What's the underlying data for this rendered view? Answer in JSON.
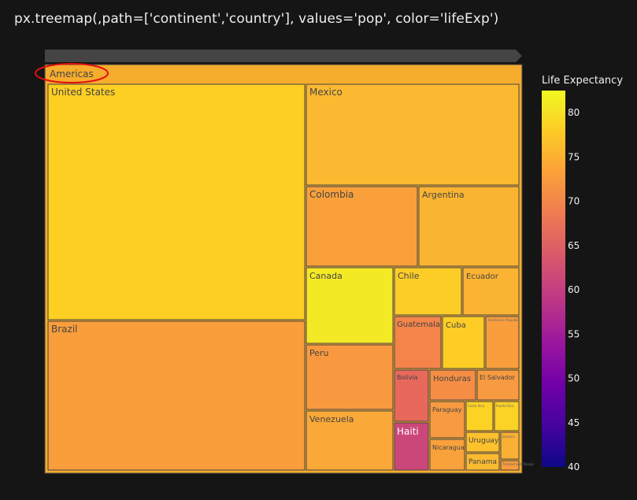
{
  "title": "px.treemap(,path=['continent','country'], values='pop', color='lifeExp')",
  "chart_data": {
    "type": "treemap",
    "root": "Americas",
    "root_color": "#f6ac2d",
    "annotation": "red ellipse circling the Americas label",
    "colorbar": {
      "title": "Life Expectancy",
      "range": [
        40,
        82.5
      ],
      "ticks": [
        40,
        45,
        50,
        55,
        60,
        65,
        70,
        75,
        80
      ],
      "colorscale": [
        "#0d0887",
        "#46039f",
        "#7201a8",
        "#9c179e",
        "#bd3786",
        "#d8576b",
        "#ed7953",
        "#fb9f3a",
        "#fdca26",
        "#f0f921"
      ]
    },
    "countries": [
      {
        "name": "United States",
        "color": "#fdcf22"
      },
      {
        "name": "Brazil",
        "color": "#fa9e3b"
      },
      {
        "name": "Mexico",
        "color": "#fbb931"
      },
      {
        "name": "Colombia",
        "color": "#f9a03b"
      },
      {
        "name": "Argentina",
        "color": "#fbb431"
      },
      {
        "name": "Canada",
        "color": "#f4e925"
      },
      {
        "name": "Peru",
        "color": "#f9993f"
      },
      {
        "name": "Venezuela",
        "color": "#faa837"
      },
      {
        "name": "Chile",
        "color": "#fccd27"
      },
      {
        "name": "Ecuador",
        "color": "#fbb333"
      },
      {
        "name": "Guatemala",
        "color": "#f4844a"
      },
      {
        "name": "Cuba",
        "color": "#fdcd26"
      },
      {
        "name": "Dominican Republic",
        "color": "#f99e3d"
      },
      {
        "name": "Bolivia",
        "color": "#e8695c"
      },
      {
        "name": "Honduras",
        "color": "#f58d45"
      },
      {
        "name": "El Salvador",
        "color": "#f89a40"
      },
      {
        "name": "Haiti",
        "color": "#cc4779"
      },
      {
        "name": "Paraguay",
        "color": "#f79a40"
      },
      {
        "name": "Costa Rica",
        "color": "#fcd225"
      },
      {
        "name": "Puerto Rico",
        "color": "#fbd226"
      },
      {
        "name": "Nicaragua",
        "color": "#f9a13b"
      },
      {
        "name": "Uruguay",
        "color": "#fcc12d"
      },
      {
        "name": "Jamaica",
        "color": "#fab035"
      },
      {
        "name": "Panama",
        "color": "#fbba30"
      },
      {
        "name": "Trinidad and Tobago",
        "color": "#f99c3d"
      }
    ]
  }
}
